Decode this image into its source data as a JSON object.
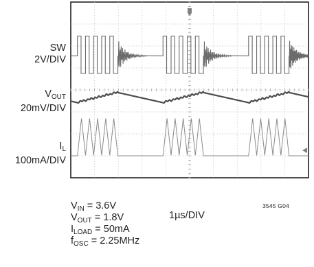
{
  "chart_data": {
    "type": "line",
    "x_divisions": 10,
    "y_divisions": 8,
    "x_scale": "1µs/DIV",
    "grid": true,
    "traces": [
      {
        "signal": "SW",
        "scale": "2V/DIV",
        "pattern": "burst switching: 5 pulses per burst, ringing after each burst, 3 bursts",
        "burst_period_div": 3.6,
        "pulses_per_burst": 5,
        "pulse_period_div": 0.34,
        "burst_starts_div": [
          0.28,
          3.88,
          7.48
        ]
      },
      {
        "signal": "VOUT",
        "scale": "20mV/DIV",
        "pattern": "ripple: staircase rise during burst, linear decay between bursts"
      },
      {
        "signal": "IL",
        "scale": "100mA/DIV",
        "pattern": "triangular inductor current pulses, 5 per burst, returning to zero between bursts"
      }
    ]
  },
  "labels": {
    "sw_name": "SW",
    "sw_scale": "2V/DIV",
    "vout_name": "V",
    "vout_sub": "OUT",
    "vout_scale": "20mV/DIV",
    "il_name": "I",
    "il_sub": "L",
    "il_scale": "100mA/DIV"
  },
  "conditions": {
    "vin_name": "V",
    "vin_sub": "IN",
    "vin_value": " = 3.6V",
    "vout_name": "V",
    "vout_sub": "OUT",
    "vout_value": " = 1.8V",
    "iload_name": "I",
    "iload_sub": "LOAD",
    "iload_value": " = 50mA",
    "fosc_name": "f",
    "fosc_sub": "OSC",
    "fosc_value": " = 2.25MHz"
  },
  "time_scale": "1µs/DIV",
  "figure_id": "3545 G04"
}
